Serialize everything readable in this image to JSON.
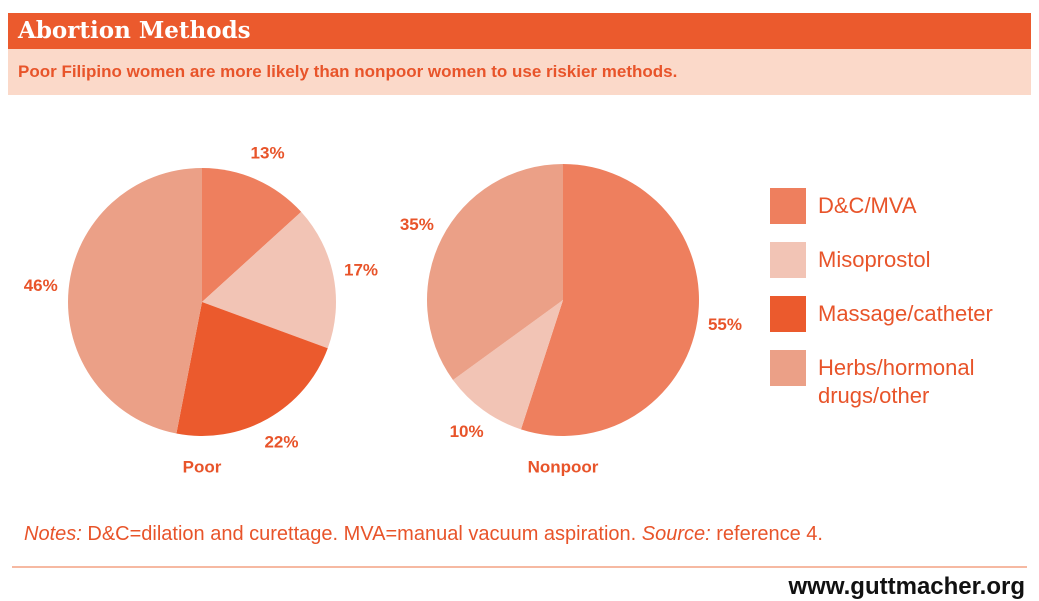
{
  "header": {
    "title": "Abortion Methods",
    "subtitle": "Poor Filipino women are more likely than nonpoor women to use riskier methods."
  },
  "legend": {
    "labels": [
      "D&C/MVA",
      "Misoprostol",
      "Massage/catheter",
      "Herbs/hormonal drugs/other"
    ],
    "colors": [
      "#ee7f5e",
      "#f2c4b5",
      "#eb5a2d",
      "#eba087"
    ]
  },
  "chart_data": [
    {
      "type": "pie",
      "label": "Poor",
      "values": [
        13,
        17,
        22,
        46
      ],
      "value_labels": [
        "13%",
        "17%",
        "22%",
        "46%"
      ]
    },
    {
      "type": "pie",
      "label": "Nonpoor",
      "values": [
        55,
        10,
        null,
        35
      ],
      "value_labels": [
        "55%",
        "10%",
        null,
        "35%"
      ]
    }
  ],
  "notes": {
    "label": "Notes:",
    "text": " D&C=dilation and curettage. MVA=manual vacuum aspiration. ",
    "source_label": "Source:",
    "source": " reference 4."
  },
  "footer": "www.guttmacher.org"
}
